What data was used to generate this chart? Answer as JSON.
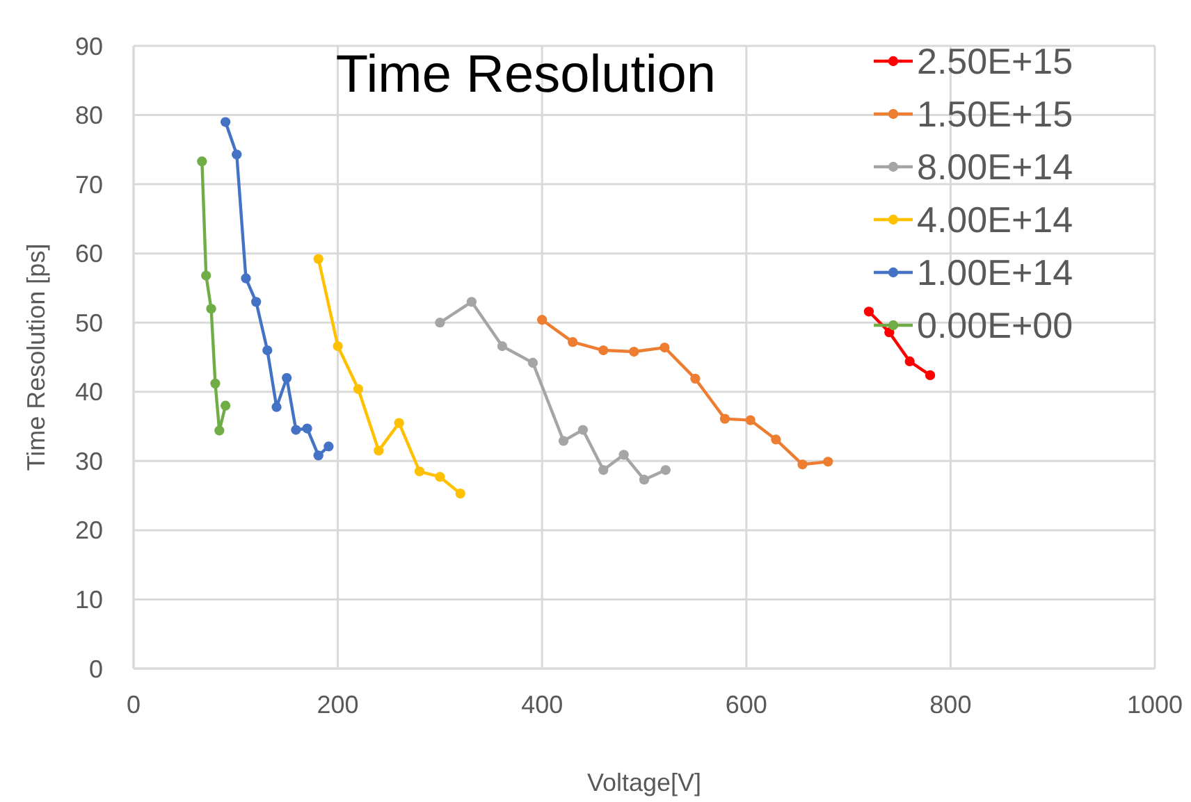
{
  "chart_data": {
    "type": "line",
    "title": "Time Resolution",
    "xlabel": "Voltage[V]",
    "ylabel": "Time Resolution [ps]",
    "xlim": [
      0,
      1000
    ],
    "xticks": [
      0,
      200,
      400,
      600,
      800,
      1000
    ],
    "ylim": [
      0,
      90
    ],
    "yticks": [
      0,
      10,
      20,
      30,
      40,
      50,
      60,
      70,
      80,
      90
    ],
    "grid": true,
    "legend": "top right",
    "marker": "circle",
    "line_style": "solid",
    "series": [
      {
        "name": "2.50E+15",
        "color": "#ff0000",
        "x": [
          720,
          740,
          760,
          780
        ],
        "values": [
          51.6,
          48.6,
          44.4,
          42.4
        ]
      },
      {
        "name": "1.50E+15",
        "color": "#ed7d31",
        "x": [
          400,
          430,
          460,
          490,
          520,
          550,
          579,
          604,
          629,
          655,
          680
        ],
        "values": [
          50.4,
          47.2,
          46,
          45.8,
          46.4,
          41.9,
          36.1,
          35.9,
          33.1,
          29.5,
          29.9
        ]
      },
      {
        "name": "8.00E+14",
        "color": "#a5a5a5",
        "x": [
          300,
          331,
          361,
          391,
          421,
          440,
          460,
          480,
          500,
          521
        ],
        "values": [
          50,
          53,
          46.6,
          44.2,
          32.9,
          34.5,
          28.7,
          30.9,
          27.3,
          28.7
        ]
      },
      {
        "name": "4.00E+14",
        "color": "#ffc000",
        "x": [
          181,
          200,
          220,
          240,
          260,
          280,
          300,
          320
        ],
        "values": [
          59.2,
          46.6,
          40.4,
          31.5,
          35.5,
          28.5,
          27.7,
          25.3
        ]
      },
      {
        "name": "1.00E+14",
        "color": "#4472c4",
        "x": [
          90,
          101,
          110,
          120,
          131,
          140,
          150,
          159,
          170,
          181,
          191
        ],
        "values": [
          79,
          74.3,
          56.4,
          53,
          46,
          37.8,
          42,
          34.5,
          34.7,
          30.8,
          32.1
        ]
      },
      {
        "name": "0.00E+00",
        "color": "#70ad47",
        "x": [
          67,
          71,
          76,
          80,
          84,
          90
        ],
        "values": [
          73.3,
          56.8,
          52,
          41.2,
          34.4,
          38
        ]
      }
    ]
  }
}
